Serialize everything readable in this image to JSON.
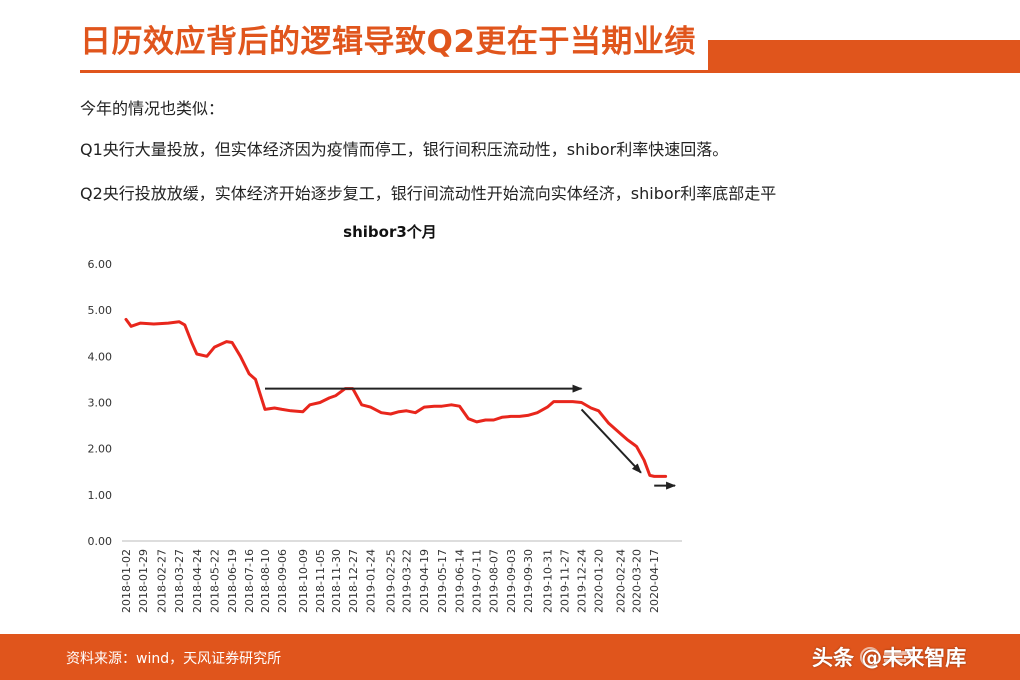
{
  "slide": {
    "title": "日历效应背后的逻辑导致Q2更在于当期业绩",
    "intro": "今年的情况也类似：",
    "q1_text": "Q1央行大量投放，但实体经济因为疫情而停工，银行间积压流动性，shibor利率快速回落。",
    "q2_text": "Q2央行投放放缓，实体经济开始逐步复工，银行间流动性开始流向实体经济，shibor利率底部走平"
  },
  "footer": {
    "source": "资料来源：wind，天风证券研究所",
    "watermark": "头条 @未来智库"
  },
  "colors": {
    "accent": "#e0551c",
    "series_line": "#e8261c",
    "arrow": "#222222"
  },
  "chart_data": {
    "type": "line",
    "title": "shibor3个月",
    "xlabel": "",
    "ylabel": "",
    "ylim": [
      0,
      6
    ],
    "yticks": [
      "0.00",
      "1.00",
      "2.00",
      "3.00",
      "4.00",
      "5.00",
      "6.00"
    ],
    "xlim": [
      "2018-01-02",
      "2020-05-31"
    ],
    "x_tick_labels": [
      "2018-01-02",
      "2018-01-29",
      "2018-02-27",
      "2018-03-27",
      "2018-04-24",
      "2018-05-22",
      "2018-06-19",
      "2018-07-16",
      "2018-08-10",
      "2018-09-06",
      "2018-10-09",
      "2018-11-05",
      "2018-11-30",
      "2018-12-27",
      "2019-01-24",
      "2019-02-25",
      "2019-03-22",
      "2019-04-19",
      "2019-05-17",
      "2019-06-14",
      "2019-07-11",
      "2019-08-07",
      "2019-09-03",
      "2019-09-30",
      "2019-10-31",
      "2019-11-27",
      "2019-12-24",
      "2020-01-20",
      "2020-02-24",
      "2020-03-20",
      "2020-04-17"
    ],
    "grid": false,
    "legend": "none",
    "series": [
      {
        "x": [
          "2018-01-02",
          "2018-01-10",
          "2018-01-25",
          "2018-02-15",
          "2018-03-10",
          "2018-03-27",
          "2018-04-05",
          "2018-04-16",
          "2018-04-24",
          "2018-05-10",
          "2018-05-22",
          "2018-06-10",
          "2018-06-19",
          "2018-07-02",
          "2018-07-16",
          "2018-07-26",
          "2018-08-10",
          "2018-08-25",
          "2018-09-06",
          "2018-09-20",
          "2018-10-09",
          "2018-10-20",
          "2018-11-05",
          "2018-11-20",
          "2018-11-30",
          "2018-12-15",
          "2018-12-27",
          "2019-01-10",
          "2019-01-24",
          "2019-02-10",
          "2019-02-25",
          "2019-03-10",
          "2019-03-22",
          "2019-04-05",
          "2019-04-19",
          "2019-05-05",
          "2019-05-17",
          "2019-06-01",
          "2019-06-14",
          "2019-06-28",
          "2019-07-11",
          "2019-07-25",
          "2019-08-07",
          "2019-08-20",
          "2019-09-03",
          "2019-09-17",
          "2019-09-30",
          "2019-10-15",
          "2019-10-31",
          "2019-11-10",
          "2019-11-27",
          "2019-12-10",
          "2019-12-24",
          "2020-01-08",
          "2020-01-20",
          "2020-02-05",
          "2020-02-24",
          "2020-03-05",
          "2020-03-20",
          "2020-04-01",
          "2020-04-10",
          "2020-04-17",
          "2020-04-25",
          "2020-05-05"
        ],
        "values": [
          4.8,
          4.65,
          4.72,
          4.7,
          4.72,
          4.75,
          4.68,
          4.3,
          4.05,
          4.0,
          4.2,
          4.32,
          4.3,
          4.0,
          3.62,
          3.5,
          2.85,
          2.88,
          2.85,
          2.82,
          2.8,
          2.95,
          3.0,
          3.1,
          3.15,
          3.3,
          3.3,
          2.95,
          2.9,
          2.78,
          2.75,
          2.8,
          2.82,
          2.78,
          2.9,
          2.92,
          2.92,
          2.95,
          2.92,
          2.65,
          2.58,
          2.62,
          2.62,
          2.68,
          2.7,
          2.7,
          2.72,
          2.78,
          2.9,
          3.02,
          3.02,
          3.02,
          3.0,
          2.88,
          2.82,
          2.55,
          2.32,
          2.2,
          2.05,
          1.75,
          1.42,
          1.4,
          1.4,
          1.4
        ]
      }
    ],
    "annotations": [
      {
        "type": "arrow",
        "from": [
          "2018-08-10",
          3.3
        ],
        "to": [
          "2019-12-24",
          3.3
        ]
      },
      {
        "type": "arrow",
        "from": [
          "2019-12-24",
          2.85
        ],
        "to": [
          "2020-03-27",
          1.48
        ]
      },
      {
        "type": "arrow",
        "from": [
          "2020-04-17",
          1.2
        ],
        "to": [
          "2020-05-20",
          1.2
        ]
      }
    ]
  }
}
